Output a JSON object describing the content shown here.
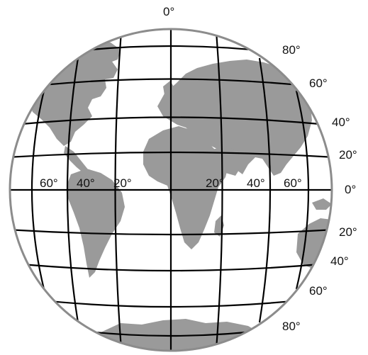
{
  "map": {
    "title": "",
    "colors": {
      "land": "#9a9a9a",
      "ocean": "#ffffff",
      "grid": "#000000",
      "rim": "#8c8c8c"
    },
    "labels": {
      "top_meridian": "0°",
      "lat_80_north": "80°",
      "lat_60_north": "60°",
      "lat_40_north": "40°",
      "lat_20_north": "20°",
      "equator": "0°",
      "lat_20_south": "20°",
      "lat_40_south": "40°",
      "lat_60_south": "60°",
      "lat_80_south": "80°",
      "lon_60_west": "60°",
      "lon_40_west": "40°",
      "lon_20_west": "20°",
      "lon_20_east": "20°",
      "lon_40_east": "40°",
      "lon_60_east": "60°"
    }
  }
}
